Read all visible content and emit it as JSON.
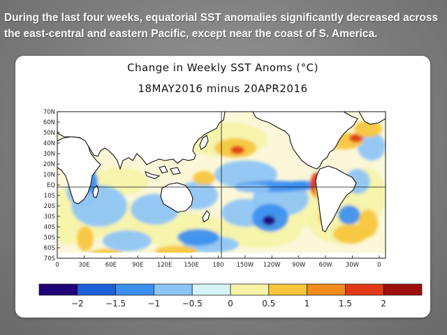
{
  "headline": "During the last four weeks, equatorial SST anomalies significantly decreased across the east-central and eastern Pacific, except near the coast of S. America.",
  "map": {
    "title": "Change in Weekly SST Anoms (°C)",
    "subtitle": "18MAY2016 minus 20APR2016",
    "lat_labels": [
      "70N",
      "60N",
      "50N",
      "40N",
      "30N",
      "20N",
      "10N",
      "EQ",
      "10S",
      "20S",
      "30S",
      "40S",
      "50S",
      "60S",
      "70S"
    ],
    "lon_labels": [
      "0",
      "30E",
      "60E",
      "90E",
      "120E",
      "150E",
      "180",
      "150W",
      "120W",
      "90W",
      "60W",
      "30W",
      "0"
    ],
    "colorbar": {
      "colors": [
        "#200078",
        "#1c5fd9",
        "#3a8ff0",
        "#8cc4f6",
        "#d6f3f8",
        "#f6f3a8",
        "#f7c63c",
        "#f38b1c",
        "#e23a16",
        "#9e0e0e"
      ],
      "tick_labels": [
        "−2",
        "−1.5",
        "−1",
        "−0.5",
        "0",
        "0.5",
        "1",
        "1.5",
        "2"
      ]
    },
    "anomaly_colors": {
      "strong_negative": "#200078",
      "negative": "#3a8ff0",
      "weak_negative": "#8cc4f6",
      "near_zero": "#ffffff",
      "weak_positive": "#f6f3a8",
      "positive": "#f7c63c",
      "strong_positive": "#e23a16"
    },
    "land_color": "#ffffff"
  }
}
